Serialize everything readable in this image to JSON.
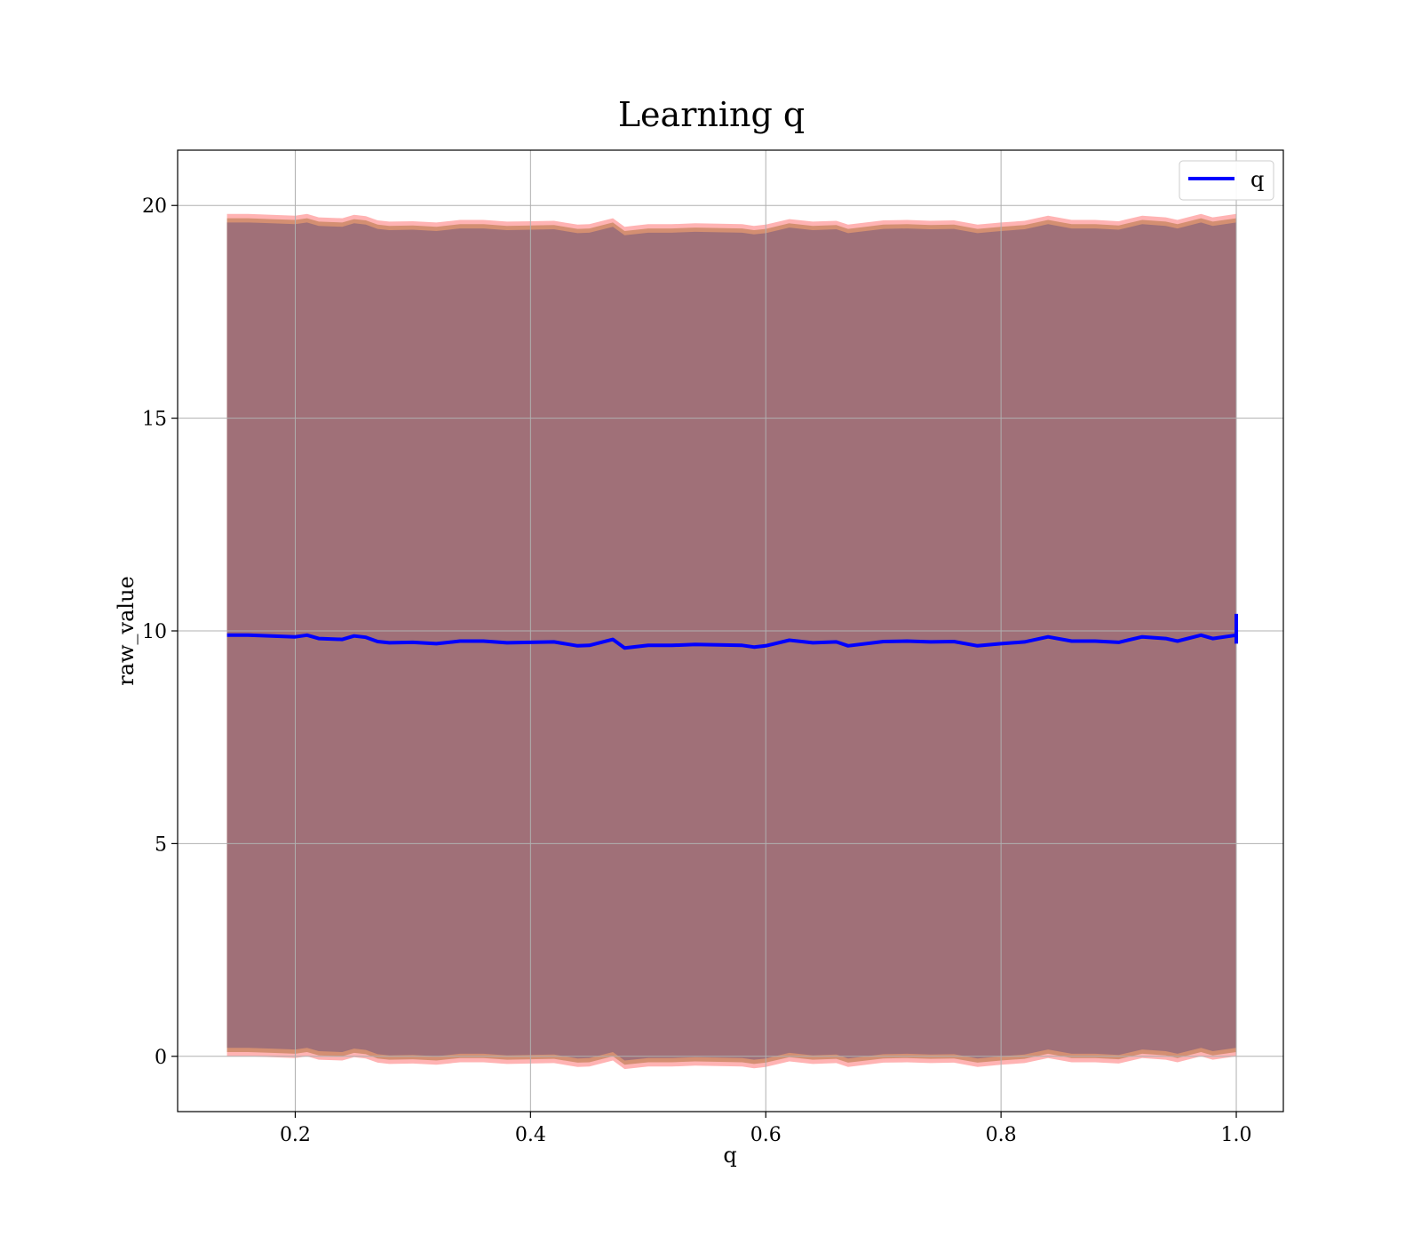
{
  "chart_data": {
    "type": "line",
    "title": "Learning q",
    "xlabel": "q",
    "ylabel": "raw_value",
    "xlim": [
      0.1,
      1.04
    ],
    "ylim": [
      -1.3,
      21.3
    ],
    "xticks": [
      0.2,
      0.4,
      0.6,
      0.8,
      1.0
    ],
    "xtick_labels": [
      "0.2",
      "0.4",
      "0.6",
      "0.8",
      "1.0"
    ],
    "yticks": [
      0,
      5,
      10,
      15,
      20
    ],
    "ytick_labels": [
      "0",
      "5",
      "10",
      "15",
      "20"
    ],
    "grid": true,
    "legend": {
      "placement": "top-right",
      "entries": [
        "q"
      ]
    },
    "colors": {
      "line": "#0000ff",
      "band_outer": "#ff9a9a",
      "band_middle": "#cc8866",
      "band_inner": "#a07078"
    },
    "series": [
      {
        "name": "q",
        "x": [
          0.142,
          0.16,
          0.18,
          0.2,
          0.21,
          0.22,
          0.24,
          0.25,
          0.26,
          0.27,
          0.28,
          0.3,
          0.32,
          0.34,
          0.36,
          0.38,
          0.4,
          0.42,
          0.44,
          0.45,
          0.47,
          0.48,
          0.5,
          0.52,
          0.54,
          0.56,
          0.58,
          0.59,
          0.6,
          0.62,
          0.64,
          0.66,
          0.67,
          0.7,
          0.72,
          0.74,
          0.76,
          0.78,
          0.8,
          0.82,
          0.84,
          0.86,
          0.88,
          0.9,
          0.92,
          0.94,
          0.95,
          0.97,
          0.98,
          1.0
        ],
        "y": [
          9.9,
          9.9,
          9.88,
          9.86,
          9.9,
          9.82,
          9.8,
          9.88,
          9.85,
          9.75,
          9.72,
          9.73,
          9.7,
          9.76,
          9.76,
          9.72,
          9.73,
          9.74,
          9.65,
          9.66,
          9.8,
          9.6,
          9.66,
          9.66,
          9.68,
          9.67,
          9.66,
          9.62,
          9.65,
          9.78,
          9.72,
          9.74,
          9.65,
          9.75,
          9.76,
          9.74,
          9.75,
          9.65,
          9.7,
          9.74,
          9.86,
          9.76,
          9.76,
          9.73,
          9.86,
          9.82,
          9.76,
          9.9,
          9.82,
          9.9
        ],
        "band_halfwidth_inner": 9.7,
        "band_halfwidth_middle": 9.8,
        "band_halfwidth_outer": 9.9
      }
    ]
  }
}
